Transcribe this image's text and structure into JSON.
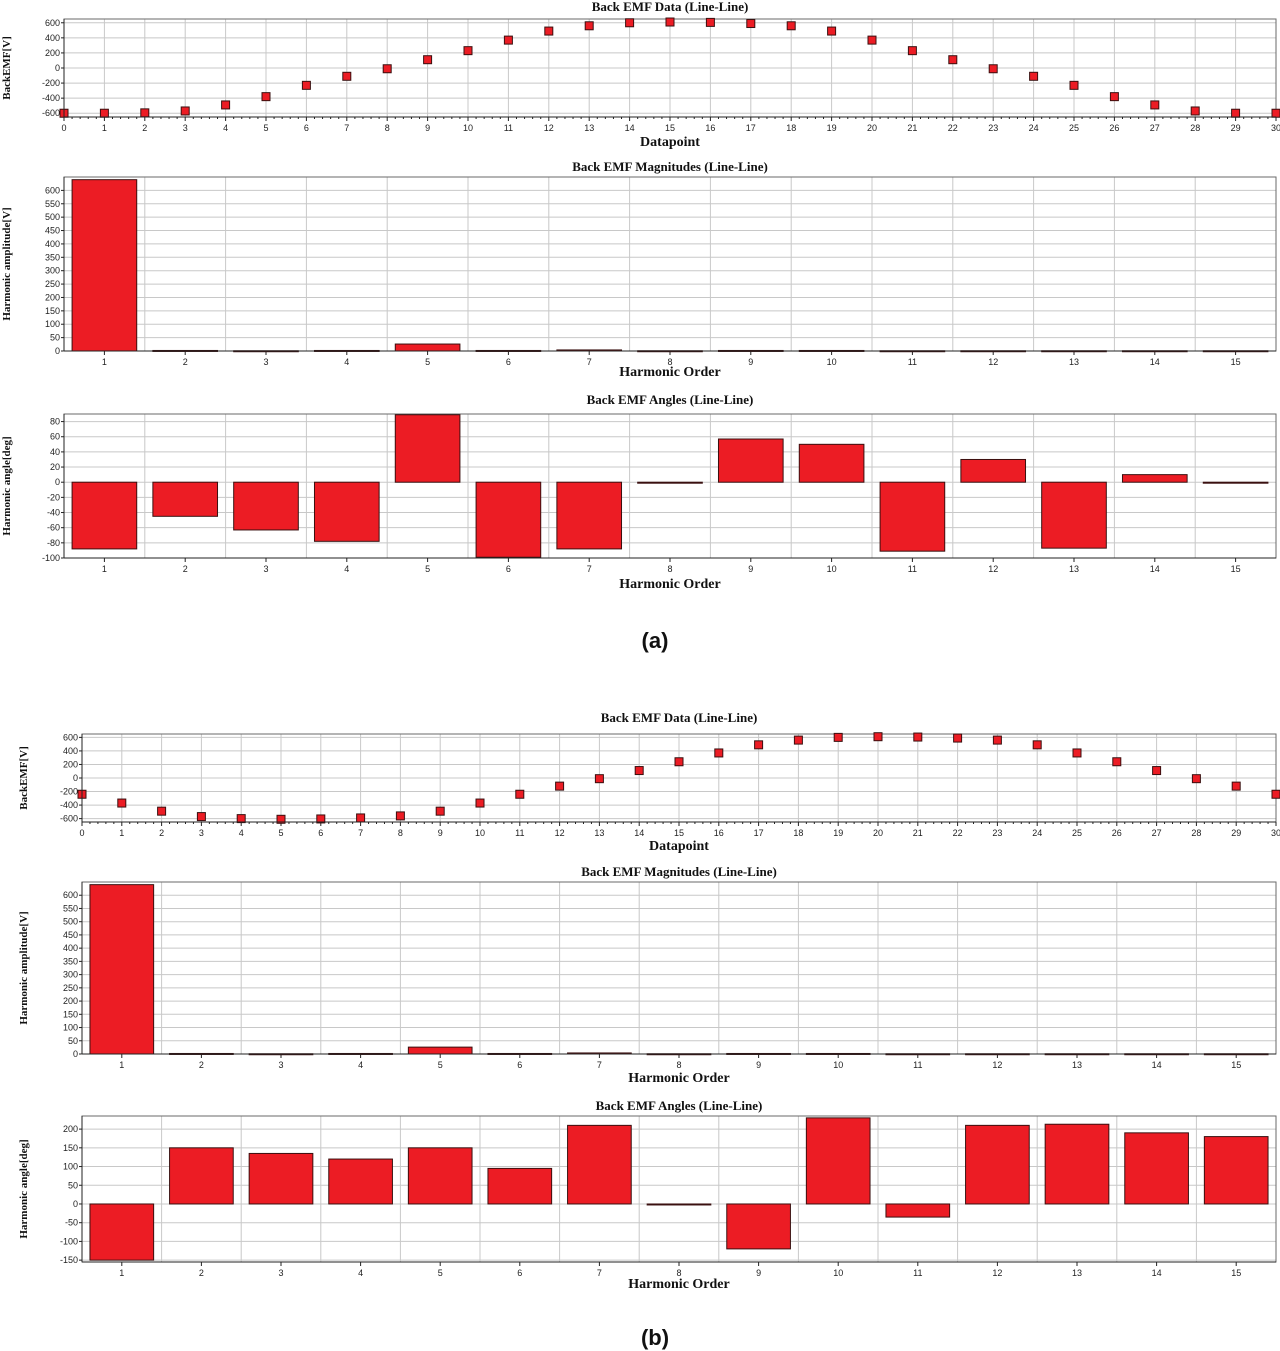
{
  "colors": {
    "series": "#ec1c24",
    "grid": "#c8c8c8"
  },
  "panels": [
    {
      "label": "(a)"
    },
    {
      "label": "(b)"
    }
  ],
  "chart_data": [
    {
      "id": "a-data",
      "panel": "(a)",
      "type": "scatter",
      "title": "Back EMF Data (Line-Line)",
      "xlabel": "Datapoint",
      "ylabel": "BackEMF[V]",
      "xlim": [
        0,
        30
      ],
      "ylim": [
        -650,
        650
      ],
      "yticks": [
        600,
        400,
        200,
        0,
        -200,
        -400,
        -600
      ],
      "x": [
        0,
        1,
        2,
        3,
        4,
        5,
        6,
        7,
        8,
        9,
        10,
        11,
        12,
        13,
        14,
        15,
        16,
        17,
        18,
        19,
        20,
        21,
        22,
        23,
        24,
        25,
        26,
        27,
        28,
        29,
        30
      ],
      "y": [
        -600,
        -600,
        -595,
        -570,
        -490,
        -380,
        -230,
        -110,
        -10,
        110,
        230,
        370,
        490,
        560,
        600,
        610,
        605,
        590,
        560,
        490,
        370,
        230,
        110,
        -10,
        -110,
        -230,
        -380,
        -490,
        -570,
        -600,
        -600
      ]
    },
    {
      "id": "a-mag",
      "panel": "(a)",
      "type": "bar",
      "title": "Back EMF Magnitudes (Line-Line)",
      "xlabel": "Harmonic Order",
      "ylabel": "Harmonic amplitude[V]",
      "ylim": [
        0,
        650
      ],
      "yticks": [
        600,
        550,
        500,
        450,
        400,
        350,
        300,
        250,
        200,
        150,
        100,
        50,
        0
      ],
      "categories": [
        "1",
        "2",
        "3",
        "4",
        "5",
        "6",
        "7",
        "8",
        "9",
        "10",
        "11",
        "12",
        "13",
        "14",
        "15"
      ],
      "values": [
        640,
        2,
        1,
        2,
        26,
        2,
        4,
        1,
        2,
        2,
        1,
        1,
        1,
        1,
        1
      ]
    },
    {
      "id": "a-ang",
      "panel": "(a)",
      "type": "bar",
      "title": "Back EMF Angles (Line-Line)",
      "xlabel": "Harmonic Order",
      "ylabel": "Harmonic angle[deg]",
      "ylim": [
        -100,
        90
      ],
      "yticks": [
        80,
        60,
        40,
        20,
        0,
        -20,
        -40,
        -60,
        -80,
        -100
      ],
      "categories": [
        "1",
        "2",
        "3",
        "4",
        "5",
        "6",
        "7",
        "8",
        "9",
        "10",
        "11",
        "12",
        "13",
        "14",
        "15"
      ],
      "values": [
        -88,
        -45,
        -63,
        -78,
        89,
        -99,
        -88,
        0,
        57,
        50,
        -91,
        30,
        -87,
        10,
        0
      ]
    },
    {
      "id": "b-data",
      "panel": "(b)",
      "type": "scatter",
      "title": "Back EMF Data (Line-Line)",
      "xlabel": "Datapoint",
      "ylabel": "BackEMF[V]",
      "xlim": [
        0,
        30
      ],
      "ylim": [
        -650,
        650
      ],
      "yticks": [
        600,
        400,
        200,
        0,
        -200,
        -400,
        -600
      ],
      "x": [
        0,
        1,
        2,
        3,
        4,
        5,
        6,
        7,
        8,
        9,
        10,
        11,
        12,
        13,
        14,
        15,
        16,
        17,
        18,
        19,
        20,
        21,
        22,
        23,
        24,
        25,
        26,
        27,
        28,
        29,
        30
      ],
      "y": [
        -240,
        -370,
        -490,
        -570,
        -600,
        -610,
        -605,
        -590,
        -560,
        -490,
        -370,
        -240,
        -120,
        -10,
        110,
        240,
        370,
        490,
        560,
        600,
        610,
        605,
        590,
        560,
        490,
        370,
        240,
        110,
        -10,
        -120,
        -240
      ]
    },
    {
      "id": "b-mag",
      "panel": "(b)",
      "type": "bar",
      "title": "Back EMF Magnitudes (Line-Line)",
      "xlabel": "Harmonic Order",
      "ylabel": "Harmonic amplitude[V]",
      "ylim": [
        0,
        650
      ],
      "yticks": [
        600,
        550,
        500,
        450,
        400,
        350,
        300,
        250,
        200,
        150,
        100,
        50,
        0
      ],
      "categories": [
        "1",
        "2",
        "3",
        "4",
        "5",
        "6",
        "7",
        "8",
        "9",
        "10",
        "11",
        "12",
        "13",
        "14",
        "15"
      ],
      "values": [
        640,
        2,
        1,
        2,
        26,
        2,
        4,
        1,
        2,
        2,
        1,
        1,
        1,
        1,
        1
      ]
    },
    {
      "id": "b-ang",
      "panel": "(b)",
      "type": "bar",
      "title": "Back EMF Angles (Line-Line)",
      "xlabel": "Harmonic Order",
      "ylabel": "Harmonic angle[deg]",
      "ylim": [
        -155,
        235
      ],
      "yticks": [
        200,
        150,
        100,
        50,
        0,
        -50,
        -100,
        -150
      ],
      "categories": [
        "1",
        "2",
        "3",
        "4",
        "5",
        "6",
        "7",
        "8",
        "9",
        "10",
        "11",
        "12",
        "13",
        "14",
        "15"
      ],
      "values": [
        -150,
        150,
        135,
        120,
        150,
        95,
        210,
        0,
        -120,
        230,
        -35,
        210,
        213,
        190,
        180
      ]
    }
  ]
}
